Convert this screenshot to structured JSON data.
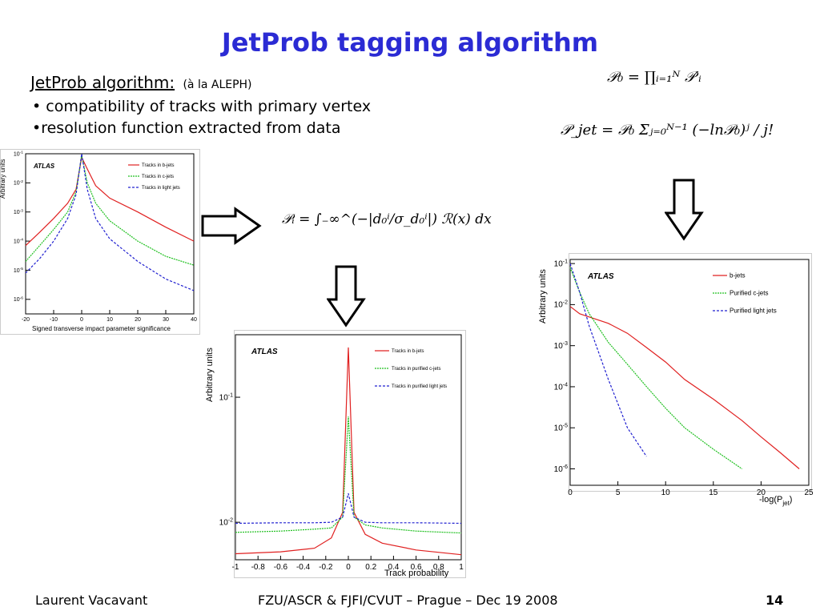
{
  "slide": {
    "title": "JetProb tagging algorithm",
    "subtitle_underlined": "JetProb algorithm:",
    "subtitle_note": "(à la ALEPH)",
    "bullets": [
      "• compatibility of tracks with primary vertex",
      "•resolution function extracted from data"
    ],
    "formulas": {
      "p0": "𝒫₀ = ∏ᵢ₌₁ᴺ 𝒫′ᵢ",
      "pjet": "𝒫_jet = 𝒫₀ Σⱼ₌₀ᴺ⁻¹ (−ln𝒫₀)ʲ / j!",
      "pi": "𝒫ᵢ = ∫₋∞^(−|d₀ⁱ/σ_d₀ⁱ|) ℛ(x) dx"
    },
    "footer": {
      "author": "Laurent Vacavant",
      "venue": "FZU/ASCR & FJFI/CVUT – Prague – Dec 19 2008",
      "page": "14"
    }
  },
  "chart_data": [
    {
      "type": "line",
      "atlas_label": "ATLAS",
      "xlabel": "Signed transverse impact parameter significance",
      "ylabel": "Arbitrary units",
      "xlim": [
        -20,
        40
      ],
      "ylim_log": [
        -6.5,
        -1
      ],
      "log_y": true,
      "xticks": [
        "-20",
        "-10",
        "0",
        "10",
        "20",
        "30",
        "40"
      ],
      "yticks": [
        "10-1",
        "10-2",
        "10-3",
        "10-4",
        "10-5",
        "10-6"
      ],
      "legend_position": "top-right",
      "x": [
        -20,
        -15,
        -10,
        -5,
        -2,
        0,
        2,
        5,
        10,
        20,
        30,
        40
      ],
      "series": [
        {
          "name": "Tracks in b-jets",
          "color": "#e02020",
          "values": [
            7e-05,
            0.0002,
            0.0006,
            0.002,
            0.006,
            0.075,
            0.03,
            0.008,
            0.003,
            0.001,
            0.0003,
            0.0001
          ]
        },
        {
          "name": "Tracks in c-jets",
          "color": "#20c020",
          "values": [
            2e-05,
            7e-05,
            0.00025,
            0.001,
            0.005,
            0.09,
            0.01,
            0.002,
            0.0005,
            0.0001,
            3e-05,
            1.5e-05
          ]
        },
        {
          "name": "Tracks in light jets",
          "color": "#2020d0",
          "values": [
            8e-06,
            2.5e-05,
            0.0001,
            0.0006,
            0.004,
            0.1,
            0.006,
            0.0006,
            0.00012,
            2e-05,
            5e-06,
            2e-06
          ]
        }
      ]
    },
    {
      "type": "line",
      "atlas_label": "ATLAS",
      "xlabel": "Track probability",
      "ylabel": "Arbitrary units",
      "xlim": [
        -1,
        1
      ],
      "ylim_log": [
        -2.3,
        -0.5
      ],
      "log_y": true,
      "xticks": [
        "-1",
        "-0.8",
        "-0.6",
        "-0.4",
        "-0.2",
        "0",
        "0.2",
        "0.4",
        "0.6",
        "0.8",
        "1"
      ],
      "yticks": [
        "10-1",
        "10-2"
      ],
      "legend_position": "top-right",
      "x": [
        -1,
        -0.6,
        -0.3,
        -0.15,
        -0.05,
        0,
        0.05,
        0.15,
        0.3,
        0.6,
        1
      ],
      "series": [
        {
          "name": "Tracks in b-jets",
          "color": "#e02020",
          "values": [
            0.0056,
            0.0058,
            0.0062,
            0.0075,
            0.012,
            0.25,
            0.012,
            0.008,
            0.0068,
            0.006,
            0.0055
          ]
        },
        {
          "name": "Tracks in purified c-jets",
          "color": "#20c020",
          "values": [
            0.0083,
            0.0085,
            0.0088,
            0.009,
            0.011,
            0.07,
            0.011,
            0.0095,
            0.009,
            0.0085,
            0.0082
          ]
        },
        {
          "name": "Tracks in purified light jets",
          "color": "#2020d0",
          "values": [
            0.0098,
            0.0099,
            0.0099,
            0.01,
            0.011,
            0.017,
            0.011,
            0.01,
            0.0099,
            0.0099,
            0.0098
          ]
        }
      ]
    },
    {
      "type": "line",
      "atlas_label": "ATLAS",
      "xlabel": "-log(P",
      "xlabel_sub": "jet",
      "xlabel_end": ")",
      "ylabel": "Arbitrary units",
      "xlim": [
        0,
        25
      ],
      "ylim_log": [
        -6.4,
        -0.9
      ],
      "log_y": true,
      "xticks": [
        "0",
        "5",
        "10",
        "15",
        "20",
        "25"
      ],
      "yticks": [
        "10-1",
        "10-2",
        "10-3",
        "10-4",
        "10-5",
        "10-6"
      ],
      "legend_position": "top-right",
      "x": [
        0,
        1,
        2,
        4,
        6,
        8,
        10,
        12,
        15,
        18,
        20,
        22,
        24
      ],
      "series": [
        {
          "name": "b-jets",
          "color": "#e02020",
          "values": [
            0.009,
            0.006,
            0.005,
            0.0035,
            0.002,
            0.0009,
            0.0004,
            0.00015,
            5e-05,
            1.5e-05,
            6e-06,
            2.5e-06,
            1e-06
          ]
        },
        {
          "name": "Purified c-jets",
          "color": "#20c020",
          "values": [
            0.08,
            0.02,
            0.006,
            0.0012,
            0.00035,
            0.0001,
            3e-05,
            1e-05,
            3e-06,
            1e-06,
            null,
            null,
            null
          ]
        },
        {
          "name": "Purified light jets",
          "color": "#2020d0",
          "values": [
            0.1,
            0.02,
            0.003,
            0.00015,
            1e-05,
            2e-06,
            null,
            null,
            null,
            null,
            null,
            null,
            null
          ]
        }
      ]
    }
  ]
}
